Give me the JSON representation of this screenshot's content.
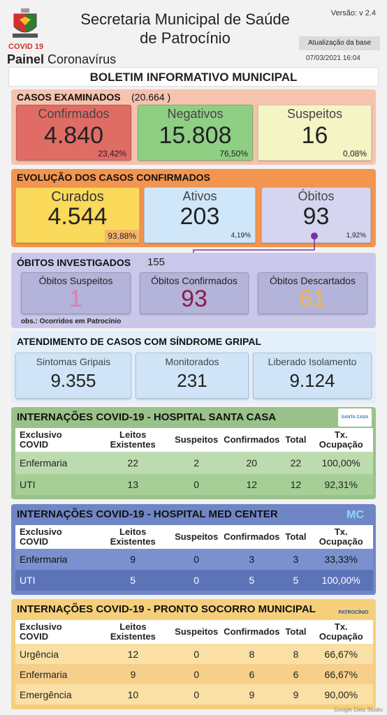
{
  "header": {
    "title": "Secretaria Municipal de Saúde de Patrocínio",
    "covid_label": "COVID 19",
    "painel_bold": "Painel",
    "painel_rest": "Coronavírus",
    "version": "Versão: v 2.4",
    "update_label": "Atualização da base",
    "update_date": "07/03/2021 16:04"
  },
  "boletim": "BOLETIM INFORMATIVO MUNICIPAL",
  "casos": {
    "title": "CASOS EXAMINADOS",
    "total": "(20.664 )",
    "cards": [
      {
        "label": "Confirmados",
        "value": "4.840",
        "pct": "23,42%"
      },
      {
        "label": "Negativos",
        "value": "15.808",
        "pct": "76,50%"
      },
      {
        "label": "Suspeitos",
        "value": "16",
        "pct": "0,08%"
      }
    ]
  },
  "evolucao": {
    "title": "EVOLUÇÃO DOS CASOS CONFIRMADOS",
    "cards": [
      {
        "label": "Curados",
        "value": "4.544",
        "pct": "93,88%"
      },
      {
        "label": "Ativos",
        "value": "203",
        "pct": "4,19%"
      },
      {
        "label": "Óbitos",
        "value": "93",
        "pct": "1,92%"
      }
    ]
  },
  "obitos": {
    "title": "ÓBITOS INVESTIGADOS",
    "total": "155",
    "cards": [
      {
        "label": "Óbitos Suspeitos",
        "value": "1"
      },
      {
        "label": "Óbitos Confirmados",
        "value": "93"
      },
      {
        "label": "Óbitos Descartados",
        "value": "61"
      }
    ],
    "obs": "obs.: Ocorridos em Patrocínio"
  },
  "atendimento": {
    "title": "ATENDIMENTO DE CASOS COM SÍNDROME GRIPAL",
    "cards": [
      {
        "label": "Sintomas Gripais",
        "value": "9.355"
      },
      {
        "label": "Monitorados",
        "value": "231"
      },
      {
        "label": "Liberado Isolamento",
        "value": "9.124"
      }
    ]
  },
  "table_headers": [
    "Exclusivo COVID",
    "Leitos Existentes",
    "Suspeitos",
    "Confirmados",
    "Total",
    "Tx. Ocupação"
  ],
  "santa_casa": {
    "title": "INTERNAÇÕES COVID-19 - HOSPITAL SANTA CASA",
    "logo_text": "SANTA CASA",
    "rows": [
      [
        "Enfermaria",
        "22",
        "2",
        "20",
        "22",
        "100,00%"
      ],
      [
        "UTI",
        "13",
        "0",
        "12",
        "12",
        "92,31%"
      ]
    ]
  },
  "med_center": {
    "title": "INTERNAÇÕES COVID-19 - HOSPITAL MED CENTER",
    "rows": [
      [
        "Enfermaria",
        "9",
        "0",
        "3",
        "3",
        "33,33%"
      ],
      [
        "UTI",
        "5",
        "0",
        "5",
        "5",
        "100,00%"
      ]
    ]
  },
  "pronto_socorro": {
    "title": "INTERNAÇÕES COVID-19 - PRONTO SOCORRO MUNICIPAL",
    "logo_text": "PATROCÍNIO",
    "rows": [
      [
        "Urgência",
        "12",
        "0",
        "8",
        "8",
        "66,67%"
      ],
      [
        "Enfermaria",
        "9",
        "0",
        "6",
        "6",
        "66,67%"
      ],
      [
        "Emergência",
        "10",
        "0",
        "9",
        "9",
        "90,00%"
      ]
    ]
  },
  "footer": "Google Data Studio"
}
